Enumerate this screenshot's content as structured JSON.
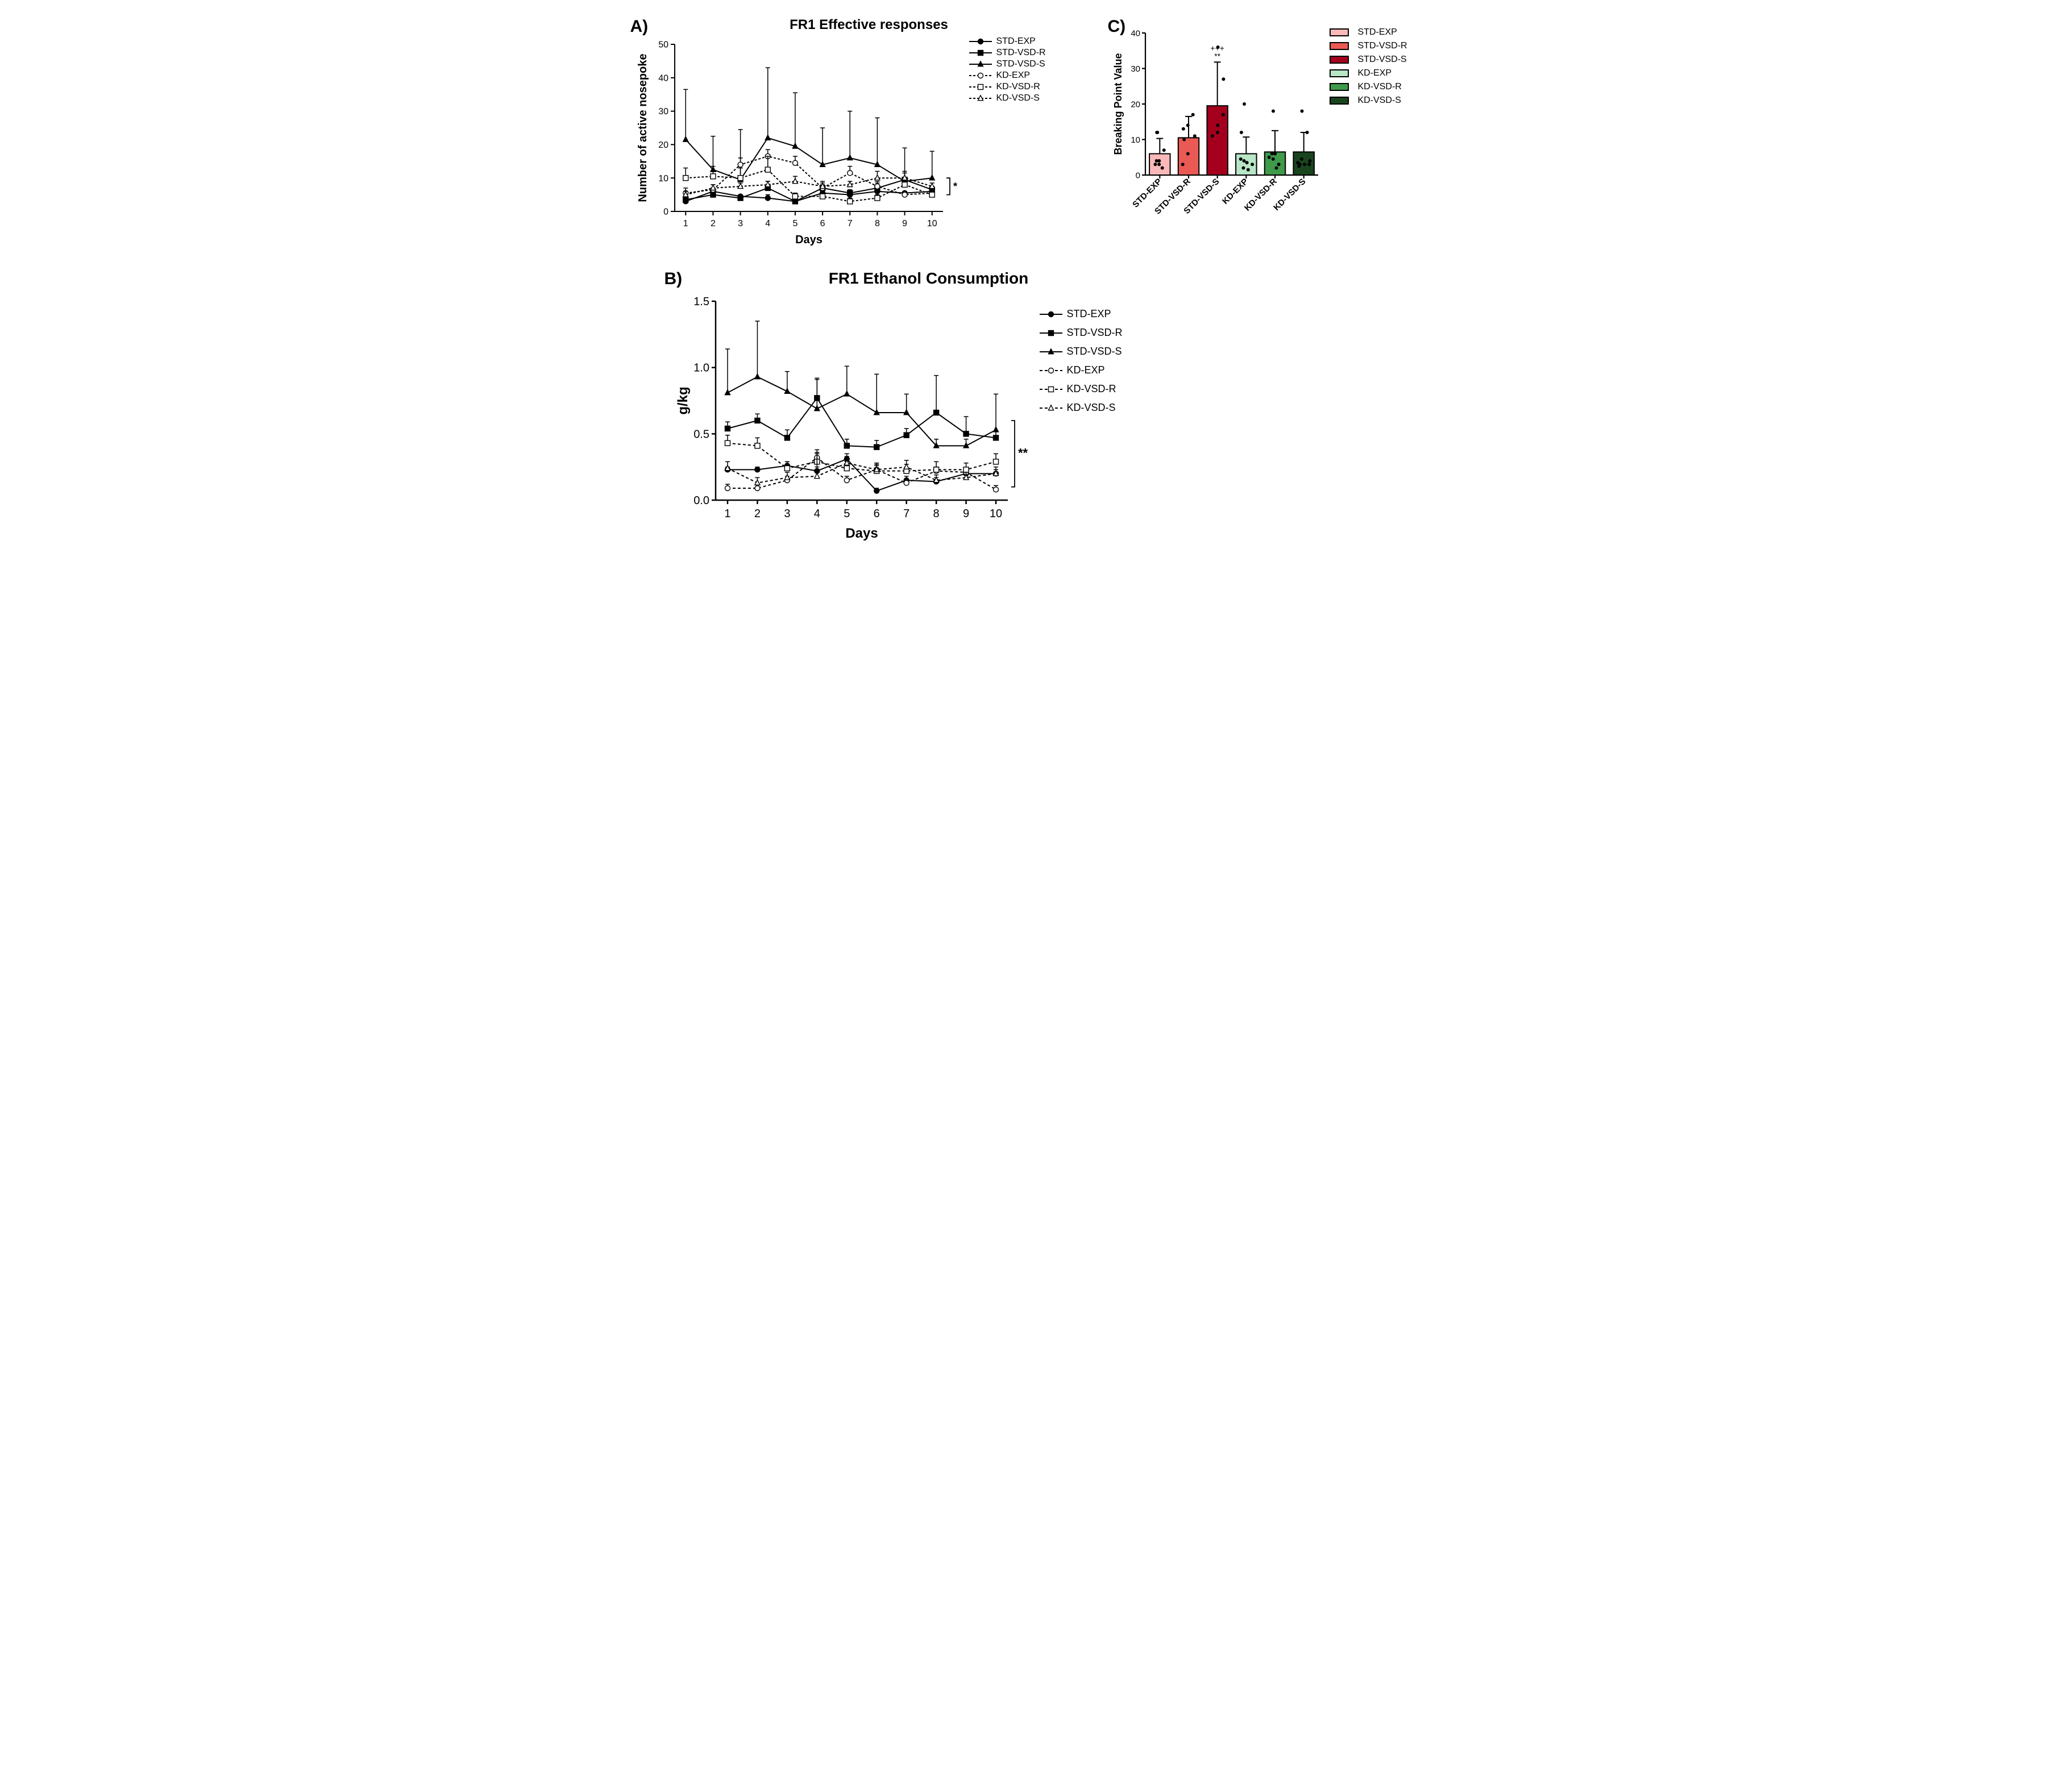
{
  "panels": {
    "a": {
      "label": "A)",
      "title": "FR1 Effective responses",
      "type": "line",
      "xlabel": "Days",
      "ylabel": "Number of active nosepoke",
      "x": [
        1,
        2,
        3,
        4,
        5,
        6,
        7,
        8,
        9,
        10
      ],
      "xlim": [
        0.6,
        10.4
      ],
      "ylim": [
        0,
        50
      ],
      "ytick_step": 10,
      "xtick_step": 1,
      "axis_linewidth": 2,
      "grid": false,
      "label_fontsize": 20,
      "tick_fontsize": 16,
      "sig_marker": "*",
      "sig_bracket": true,
      "series": [
        {
          "key": "STD-EXP",
          "label": "STD-EXP",
          "marker": "circle",
          "fill": "#000000",
          "stroke": "#000000",
          "dash": "",
          "y": [
            3.0,
            6.0,
            4.5,
            4.0,
            3.0,
            5.5,
            5.0,
            6.0,
            5.5,
            6.0
          ],
          "err": [
            3,
            1,
            0.5,
            1,
            1,
            0.5,
            0.5,
            1,
            0.5,
            0.5
          ]
        },
        {
          "key": "STD-VSD-R",
          "label": "STD-VSD-R",
          "marker": "square",
          "fill": "#000000",
          "stroke": "#000000",
          "dash": "",
          "y": [
            3.5,
            5.0,
            4.0,
            7.0,
            3.0,
            7.0,
            5.5,
            7.0,
            9.5,
            6.5
          ],
          "err": [
            1,
            1,
            1,
            2,
            1,
            2,
            1,
            2,
            2,
            1
          ]
        },
        {
          "key": "STD-VSD-S",
          "label": "STD-VSD-S",
          "marker": "triangle",
          "fill": "#000000",
          "stroke": "#000000",
          "dash": "",
          "y": [
            21.5,
            12.5,
            9.5,
            22.0,
            19.5,
            14.0,
            16.0,
            14.0,
            9.0,
            10.0
          ],
          "err": [
            15,
            10,
            15,
            21,
            16,
            11,
            14,
            14,
            10,
            8
          ]
        },
        {
          "key": "KD-EXP",
          "label": "KD-EXP",
          "marker": "circle",
          "fill": "#ffffff",
          "stroke": "#000000",
          "dash": "4 3",
          "y": [
            5.5,
            6.5,
            14.0,
            16.5,
            14.5,
            7.0,
            11.5,
            7.5,
            5.0,
            5.5
          ],
          "err": [
            1.5,
            1.5,
            2,
            2,
            2,
            1,
            2,
            1,
            1,
            1
          ]
        },
        {
          "key": "KD-VSD-R",
          "label": "KD-VSD-R",
          "marker": "square",
          "fill": "#ffffff",
          "stroke": "#000000",
          "dash": "4 3",
          "y": [
            10.0,
            10.5,
            10.0,
            12.5,
            4.5,
            4.5,
            3.0,
            4.0,
            8.0,
            5.0
          ],
          "err": [
            3,
            3,
            3,
            4,
            1,
            1,
            1,
            1,
            2,
            1
          ]
        },
        {
          "key": "KD-VSD-S",
          "label": "KD-VSD-S",
          "marker": "triangle",
          "fill": "#ffffff",
          "stroke": "#000000",
          "dash": "4 3",
          "y": [
            5.0,
            7.0,
            7.5,
            8.0,
            9.0,
            7.5,
            8.0,
            10.0,
            10.0,
            7.5
          ],
          "err": [
            1,
            1,
            1,
            1,
            1.5,
            1,
            1,
            2,
            2,
            1
          ]
        }
      ],
      "bg": "#ffffff"
    },
    "b": {
      "label": "B)",
      "title": "FR1 Ethanol Consumption",
      "type": "line",
      "xlabel": "Days",
      "ylabel": "g/kg",
      "x": [
        1,
        2,
        3,
        4,
        5,
        6,
        7,
        8,
        9,
        10
      ],
      "xlim": [
        0.6,
        10.4
      ],
      "ylim": [
        0,
        1.5
      ],
      "ytick_step": 0.5,
      "xtick_step": 1,
      "axis_linewidth": 2.5,
      "grid": false,
      "label_fontsize": 24,
      "tick_fontsize": 20,
      "sig_marker": "**",
      "sig_bracket": true,
      "series": [
        {
          "key": "STD-EXP",
          "label": "STD-EXP",
          "marker": "circle",
          "fill": "#000000",
          "stroke": "#000000",
          "dash": "",
          "y": [
            0.23,
            0.23,
            0.26,
            0.22,
            0.31,
            0.07,
            0.15,
            0.14,
            0.2,
            0.2
          ],
          "err": [
            0.02,
            0.02,
            0.03,
            0.03,
            0.04,
            0.02,
            0.03,
            0.03,
            0.03,
            0.03
          ]
        },
        {
          "key": "STD-VSD-R",
          "label": "STD-VSD-R",
          "marker": "square",
          "fill": "#000000",
          "stroke": "#000000",
          "dash": "",
          "y": [
            0.54,
            0.6,
            0.47,
            0.77,
            0.41,
            0.4,
            0.49,
            0.66,
            0.5,
            0.47
          ],
          "err": [
            0.05,
            0.05,
            0.06,
            0.15,
            0.05,
            0.05,
            0.05,
            0.28,
            0.13,
            0.05
          ]
        },
        {
          "key": "STD-VSD-S",
          "label": "STD-VSD-S",
          "marker": "triangle",
          "fill": "#000000",
          "stroke": "#000000",
          "dash": "",
          "y": [
            0.81,
            0.93,
            0.82,
            0.69,
            0.8,
            0.66,
            0.66,
            0.41,
            0.41,
            0.53
          ],
          "err": [
            0.33,
            0.42,
            0.15,
            0.22,
            0.21,
            0.29,
            0.14,
            0.05,
            0.05,
            0.27
          ]
        },
        {
          "key": "KD-EXP",
          "label": "KD-EXP",
          "marker": "circle",
          "fill": "#ffffff",
          "stroke": "#000000",
          "dash": "5 4",
          "y": [
            0.09,
            0.09,
            0.15,
            0.32,
            0.15,
            0.23,
            0.13,
            0.22,
            0.21,
            0.08
          ],
          "err": [
            0.03,
            0.03,
            0.03,
            0.06,
            0.03,
            0.03,
            0.03,
            0.03,
            0.03,
            0.03
          ]
        },
        {
          "key": "KD-VSD-R",
          "label": "KD-VSD-R",
          "marker": "square",
          "fill": "#ffffff",
          "stroke": "#000000",
          "dash": "5 4",
          "y": [
            0.43,
            0.41,
            0.24,
            0.29,
            0.24,
            0.22,
            0.22,
            0.23,
            0.23,
            0.29
          ],
          "err": [
            0.06,
            0.06,
            0.05,
            0.06,
            0.05,
            0.05,
            0.05,
            0.06,
            0.05,
            0.06
          ]
        },
        {
          "key": "KD-VSD-S",
          "label": "KD-VSD-S",
          "marker": "triangle",
          "fill": "#ffffff",
          "stroke": "#000000",
          "dash": "5 4",
          "y": [
            0.24,
            0.13,
            0.17,
            0.18,
            0.28,
            0.23,
            0.25,
            0.15,
            0.17,
            0.2
          ],
          "err": [
            0.05,
            0.04,
            0.04,
            0.18,
            0.05,
            0.05,
            0.05,
            0.04,
            0.04,
            0.05
          ]
        }
      ],
      "bg": "#ffffff"
    },
    "c": {
      "label": "C)",
      "type": "bar",
      "ylabel": "Breaking Point Value",
      "categories": [
        "STD-EXP",
        "STD-VSD-R",
        "STD-VSD-S",
        "KD-EXP",
        "KD-VSD-R",
        "KD-VSD-S"
      ],
      "values": [
        6.0,
        10.5,
        19.5,
        6.0,
        6.5,
        6.5
      ],
      "errors": [
        4.3,
        6.0,
        12.3,
        4.7,
        6.0,
        5.5
      ],
      "bar_colors": [
        "#fbb8b8",
        "#ea5a54",
        "#a4001e",
        "#b8e6c6",
        "#3f9a4a",
        "#19451e"
      ],
      "border_color": "#000000",
      "border_width": 2,
      "ylim": [
        0,
        40
      ],
      "ytick_step": 10,
      "bar_width": 0.72,
      "points": [
        [
          12,
          12,
          4,
          3,
          3,
          4,
          7,
          2
        ],
        [
          6,
          3,
          17,
          10,
          11,
          13,
          14
        ],
        [
          12,
          36,
          27,
          14,
          17,
          11
        ],
        [
          12,
          1.5,
          3,
          20,
          2,
          4,
          4.5,
          3.5
        ],
        [
          3,
          18,
          2,
          6,
          5,
          6,
          4.5
        ],
        [
          3,
          12,
          18,
          3,
          3,
          4,
          2.5,
          3.5,
          4.5
        ]
      ],
      "sig_text_top": "+++",
      "sig_text_bot": "**",
      "sig_on_index": 2,
      "label_fontsize": 18,
      "tick_fontsize": 15,
      "bg": "#ffffff"
    }
  },
  "legend_labels": [
    "STD-EXP",
    "STD-VSD-R",
    "STD-VSD-S",
    "KD-EXP",
    "KD-VSD-R",
    "KD-VSD-S"
  ]
}
